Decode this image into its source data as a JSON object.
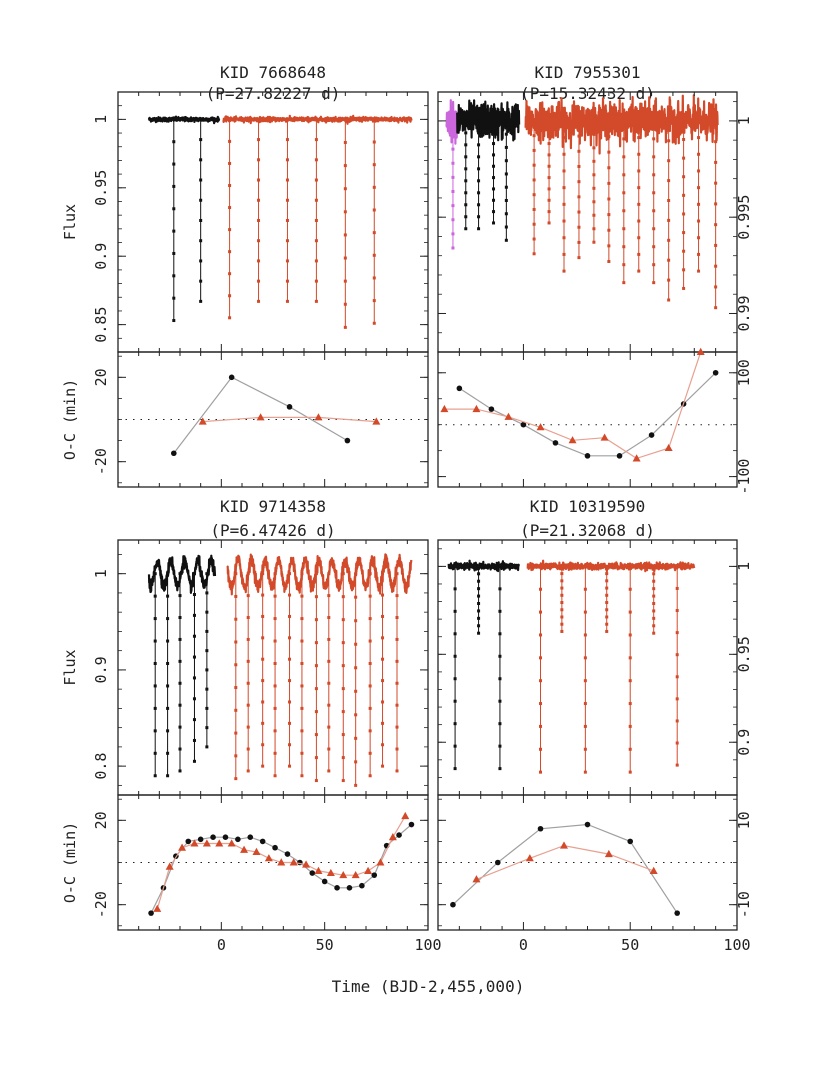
{
  "chart_data": {
    "type": "multi-panel light curve and O-C",
    "xlabel": "Time  (BJD-2,455,000)",
    "x_ticks": [
      "0",
      "50",
      "100"
    ],
    "flux_label": "Flux",
    "oc_label": "O-C (min)",
    "colors": {
      "kepler": "#111111",
      "new": "#d24a2a",
      "extra": "#cc66dd",
      "connector_kepler": "#a0a0a0",
      "connector_new": "#e8a090"
    },
    "panels": [
      {
        "id": "kid7668648",
        "title_line1": "KID 7668648",
        "title_line2": "(P=27.82227 d)",
        "xlim": [
          -50,
          100
        ],
        "flux": {
          "ylim": [
            0.83,
            1.02
          ],
          "yticks": [
            {
              "v": 1,
              "label": "1"
            },
            {
              "v": 0.95,
              "label": "0.95"
            },
            {
              "v": 0.9,
              "label": "0.9"
            },
            {
              "v": 0.85,
              "label": "0.85"
            }
          ],
          "baseline": 1.0,
          "segments": [
            {
              "series": "kepler",
              "x0": -35,
              "x1": -1,
              "noise": 0.0008,
              "osc": 0
            },
            {
              "series": "new",
              "x0": 1,
              "x1": 92,
              "noise": 0.0008,
              "osc": 0
            }
          ],
          "transits": [
            {
              "series": "kepler",
              "t": -23,
              "depth": 0.147
            },
            {
              "series": "kepler",
              "t": -10,
              "depth": 0.133
            },
            {
              "series": "new",
              "t": 4,
              "depth": 0.145
            },
            {
              "series": "new",
              "t": 18,
              "depth": 0.133
            },
            {
              "series": "new",
              "t": 32,
              "depth": 0.133
            },
            {
              "series": "new",
              "t": 46,
              "depth": 0.133
            },
            {
              "series": "new",
              "t": 60,
              "depth": 0.152
            },
            {
              "series": "new",
              "t": 74,
              "depth": 0.149
            }
          ]
        },
        "oc": {
          "ylim": [
            -32,
            32
          ],
          "yticks": [
            {
              "v": 20,
              "label": "20"
            },
            {
              "v": -20,
              "label": "-20"
            }
          ],
          "series": [
            {
              "name": "kepler",
              "marker": "circle",
              "x": [
                -23,
                5,
                33,
                61
              ],
              "y": [
                -16,
                20,
                6,
                -10
              ]
            },
            {
              "name": "new",
              "marker": "triangle",
              "x": [
                -9,
                19,
                47,
                75
              ],
              "y": [
                -1,
                1,
                1,
                -1
              ]
            }
          ]
        }
      },
      {
        "id": "kid7955301",
        "title_line1": "KID 7955301",
        "title_line2": "(P=15.32432 d)",
        "xlim": [
          -40,
          100
        ],
        "flux": {
          "ylim": [
            0.988,
            1.0015
          ],
          "yticks": [
            {
              "v": 1,
              "label": "1"
            },
            {
              "v": 0.995,
              "label": "0.995"
            },
            {
              "v": 0.99,
              "label": "0.99"
            }
          ],
          "baseline": 1.0,
          "segments": [
            {
              "series": "extra",
              "x0": -36,
              "x1": -31,
              "noise": 0.00045,
              "osc": 0
            },
            {
              "series": "kepler",
              "x0": -31,
              "x1": -2,
              "noise": 0.00045,
              "osc": 0
            },
            {
              "series": "new",
              "x0": 1,
              "x1": 91,
              "noise": 0.00045,
              "osc": 0
            }
          ],
          "transits": [
            {
              "series": "extra",
              "t": -33,
              "depth": 0.0066
            },
            {
              "series": "kepler",
              "t": -27,
              "depth": 0.0056
            },
            {
              "series": "kepler",
              "t": -21,
              "depth": 0.0056
            },
            {
              "series": "kepler",
              "t": -14,
              "depth": 0.0053
            },
            {
              "series": "kepler",
              "t": -8,
              "depth": 0.0062
            },
            {
              "series": "new",
              "t": 5,
              "depth": 0.0069
            },
            {
              "series": "new",
              "t": 12,
              "depth": 0.0053
            },
            {
              "series": "new",
              "t": 19,
              "depth": 0.0078
            },
            {
              "series": "new",
              "t": 26,
              "depth": 0.0071
            },
            {
              "series": "new",
              "t": 33,
              "depth": 0.0063
            },
            {
              "series": "new",
              "t": 40,
              "depth": 0.0073
            },
            {
              "series": "new",
              "t": 47,
              "depth": 0.0084
            },
            {
              "series": "new",
              "t": 54,
              "depth": 0.0078
            },
            {
              "series": "new",
              "t": 61,
              "depth": 0.0084
            },
            {
              "series": "new",
              "t": 68,
              "depth": 0.0093
            },
            {
              "series": "new",
              "t": 75,
              "depth": 0.0087
            },
            {
              "series": "new",
              "t": 82,
              "depth": 0.0078
            },
            {
              "series": "new",
              "t": 90,
              "depth": 0.0097
            }
          ]
        },
        "oc": {
          "ylim": [
            -120,
            140
          ],
          "yticks": [
            {
              "v": 100,
              "label": "100"
            },
            {
              "v": -100,
              "label": "-100"
            }
          ],
          "series": [
            {
              "name": "kepler",
              "marker": "circle",
              "x": [
                -30,
                -15,
                0,
                15,
                30,
                45,
                60,
                75,
                90
              ],
              "y": [
                70,
                30,
                0,
                -35,
                -60,
                -60,
                -20,
                40,
                100
              ]
            },
            {
              "name": "new",
              "marker": "triangle",
              "x": [
                -37,
                -22,
                -7,
                8,
                23,
                38,
                53,
                68,
                83
              ],
              "y": [
                30,
                30,
                15,
                -5,
                -30,
                -25,
                -65,
                -45,
                140
              ]
            }
          ]
        }
      },
      {
        "id": "kid9714358",
        "title_line1": "KID 9714358",
        "title_line2": "(P=6.47426 d)",
        "xlim": [
          -50,
          100
        ],
        "flux": {
          "ylim": [
            0.77,
            1.035
          ],
          "yticks": [
            {
              "v": 1,
              "label": "1"
            },
            {
              "v": 0.9,
              "label": "0.9"
            },
            {
              "v": 0.8,
              "label": "0.8"
            }
          ],
          "baseline": 1.0,
          "segments": [
            {
              "series": "kepler",
              "x0": -35,
              "x1": -3,
              "noise": 0.003,
              "osc": 0.013,
              "oscPeriod": 6.5
            },
            {
              "series": "new",
              "x0": 3,
              "x1": 92,
              "noise": 0.003,
              "osc": 0.014,
              "oscPeriod": 6.5
            }
          ],
          "transits": [
            {
              "series": "kepler",
              "t": -32,
              "depth": 0.21
            },
            {
              "series": "kepler",
              "t": -26,
              "depth": 0.21
            },
            {
              "series": "kepler",
              "t": -20,
              "depth": 0.205
            },
            {
              "series": "kepler",
              "t": -13,
              "depth": 0.195
            },
            {
              "series": "kepler",
              "t": -7,
              "depth": 0.18
            },
            {
              "series": "new",
              "t": 7,
              "depth": 0.213
            },
            {
              "series": "new",
              "t": 13,
              "depth": 0.205
            },
            {
              "series": "new",
              "t": 20,
              "depth": 0.2
            },
            {
              "series": "new",
              "t": 26,
              "depth": 0.21
            },
            {
              "series": "new",
              "t": 33,
              "depth": 0.2
            },
            {
              "series": "new",
              "t": 39,
              "depth": 0.21
            },
            {
              "series": "new",
              "t": 46,
              "depth": 0.215
            },
            {
              "series": "new",
              "t": 52,
              "depth": 0.205
            },
            {
              "series": "new",
              "t": 59,
              "depth": 0.215
            },
            {
              "series": "new",
              "t": 65,
              "depth": 0.22
            },
            {
              "series": "new",
              "t": 72,
              "depth": 0.21
            },
            {
              "series": "new",
              "t": 78,
              "depth": 0.2
            },
            {
              "series": "new",
              "t": 85,
              "depth": 0.205
            }
          ]
        },
        "oc": {
          "ylim": [
            -32,
            32
          ],
          "yticks": [
            {
              "v": 20,
              "label": "20"
            },
            {
              "v": -20,
              "label": "-20"
            }
          ],
          "series": [
            {
              "name": "kepler",
              "marker": "circle",
              "x": [
                -34,
                -28,
                -22,
                -16,
                -10,
                -4,
                2,
                8,
                14,
                20,
                26,
                32,
                38,
                44,
                50,
                56,
                62,
                68,
                74,
                80,
                86,
                92
              ],
              "y": [
                -24,
                -12,
                3,
                10,
                11,
                12,
                12,
                11,
                12,
                10,
                7,
                4,
                0,
                -5,
                -9,
                -12,
                -12,
                -11,
                -6,
                8,
                13,
                18
              ]
            },
            {
              "name": "new",
              "marker": "triangle",
              "x": [
                -31,
                -25,
                -19,
                -13,
                -7,
                -1,
                5,
                11,
                17,
                23,
                29,
                35,
                41,
                47,
                53,
                59,
                65,
                71,
                77,
                83,
                89
              ],
              "y": [
                -22,
                -2,
                7,
                9,
                9,
                9,
                9,
                6,
                5,
                2,
                0,
                0,
                -1,
                -4,
                -5,
                -6,
                -6,
                -4,
                0,
                12,
                22
              ]
            }
          ]
        }
      },
      {
        "id": "kid10319590",
        "title_line1": "KID 10319590",
        "title_line2": "(P=21.32068 d)",
        "xlim": [
          -40,
          100
        ],
        "flux": {
          "ylim": [
            0.87,
            1.015
          ],
          "yticks": [
            {
              "v": 1,
              "label": "1"
            },
            {
              "v": 0.95,
              "label": "0.95"
            },
            {
              "v": 0.9,
              "label": "0.9"
            }
          ],
          "baseline": 1.0,
          "segments": [
            {
              "series": "kepler",
              "x0": -35,
              "x1": -2,
              "noise": 0.0009,
              "osc": 0
            },
            {
              "series": "new",
              "x0": 2,
              "x1": 80,
              "noise": 0.0009,
              "osc": 0
            }
          ],
          "transits": [
            {
              "series": "kepler",
              "t": -32,
              "depth": 0.115
            },
            {
              "series": "kepler",
              "t": -21,
              "depth": 0.038
            },
            {
              "series": "kepler",
              "t": -11,
              "depth": 0.115
            },
            {
              "series": "new",
              "t": 8,
              "depth": 0.117
            },
            {
              "series": "new",
              "t": 18,
              "depth": 0.037
            },
            {
              "series": "new",
              "t": 29,
              "depth": 0.117
            },
            {
              "series": "new",
              "t": 39,
              "depth": 0.037
            },
            {
              "series": "new",
              "t": 50,
              "depth": 0.117
            },
            {
              "series": "new",
              "t": 61,
              "depth": 0.038
            },
            {
              "series": "new",
              "t": 72,
              "depth": 0.113
            }
          ]
        },
        "oc": {
          "ylim": [
            -16,
            16
          ],
          "yticks": [
            {
              "v": 10,
              "label": "10"
            },
            {
              "v": -10,
              "label": "-10"
            }
          ],
          "series": [
            {
              "name": "kepler",
              "marker": "circle",
              "x": [
                -33,
                -12,
                8,
                30,
                50,
                72
              ],
              "y": [
                -10,
                0,
                8,
                9,
                5,
                -12
              ]
            },
            {
              "name": "new",
              "marker": "triangle",
              "x": [
                -22,
                3,
                19,
                40,
                61
              ],
              "y": [
                -4,
                1,
                4,
                2,
                -2
              ]
            }
          ]
        }
      }
    ]
  }
}
